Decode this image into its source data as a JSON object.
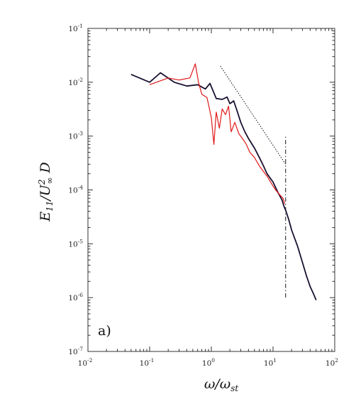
{
  "chart_data": {
    "type": "line",
    "panel_label": "a)",
    "xlabel": "ω/ω_st",
    "ylabel": "E_11/U∞² D",
    "x_scale": "log",
    "y_scale": "log",
    "xlim": [
      0.01,
      100
    ],
    "ylim": [
      1e-07,
      0.1
    ],
    "x_ticks": [
      {
        "base": "10",
        "exp": "-2"
      },
      {
        "base": "10",
        "exp": "-1"
      },
      {
        "base": "10",
        "exp": "0"
      },
      {
        "base": "10",
        "exp": "1"
      },
      {
        "base": "10",
        "exp": "2"
      }
    ],
    "y_ticks": [
      {
        "base": "10",
        "exp": "-7"
      },
      {
        "base": "10",
        "exp": "-6"
      },
      {
        "base": "10",
        "exp": "-5"
      },
      {
        "base": "10",
        "exp": "-4"
      },
      {
        "base": "10",
        "exp": "-3"
      },
      {
        "base": "10",
        "exp": "-2"
      },
      {
        "base": "10",
        "exp": "-1"
      }
    ],
    "grid": false,
    "series": [
      {
        "color": "#1a1030",
        "x": [
          0.05,
          0.1,
          0.15,
          0.25,
          0.4,
          0.6,
          0.8,
          0.95,
          1.2,
          1.5,
          1.8,
          2.0,
          2.3,
          2.6,
          3.0,
          3.5,
          4.0,
          5.0,
          6.0,
          7.0,
          8.0,
          10.0,
          12.0,
          14.0,
          15.0,
          16.0,
          18.0,
          20.0,
          25.0,
          30.0,
          35.0,
          40.0,
          45.0,
          50.0
        ],
        "y": [
          0.014,
          0.01,
          0.015,
          0.01,
          0.0085,
          0.009,
          0.0075,
          0.0095,
          0.005,
          0.0048,
          0.0053,
          0.004,
          0.0045,
          0.003,
          0.0018,
          0.0012,
          0.0009,
          0.0006,
          0.0004,
          0.00028,
          0.0002,
          0.00014,
          9e-05,
          6.5e-05,
          5e-05,
          4.2e-05,
          2.8e-05,
          1.8e-05,
          9e-06,
          4.5e-06,
          2.5e-06,
          1.6e-06,
          1.2e-06,
          9e-07
        ]
      },
      {
        "color": "#e01818",
        "x": [
          0.1,
          0.2,
          0.3,
          0.45,
          0.55,
          0.62,
          0.7,
          0.85,
          1.0,
          1.1,
          1.2,
          1.35,
          1.5,
          1.7,
          1.9,
          2.1,
          2.4,
          2.8,
          3.2,
          3.7,
          4.2,
          5.0,
          6.0,
          7.0,
          8.0,
          9.5,
          11.0,
          13.0,
          14.5,
          15.5
        ],
        "y": [
          0.009,
          0.012,
          0.011,
          0.012,
          0.022,
          0.01,
          0.006,
          0.0052,
          0.0022,
          0.0007,
          0.0028,
          0.0014,
          0.0032,
          0.0025,
          0.0036,
          0.0012,
          0.0018,
          0.0011,
          0.0009,
          0.0007,
          0.0005,
          0.0004,
          0.00028,
          0.00022,
          0.00018,
          0.00013,
          0.0001,
          8e-05,
          7e-05,
          5.5e-05
        ]
      }
    ],
    "reference_lines": [
      {
        "style": "dotted",
        "x": [
          1.4,
          16.0
        ],
        "y": [
          0.02,
          0.0003
        ]
      },
      {
        "style": "dash-dot",
        "x": [
          16.0,
          16.0
        ],
        "y": [
          1e-06,
          0.001
        ]
      }
    ]
  }
}
